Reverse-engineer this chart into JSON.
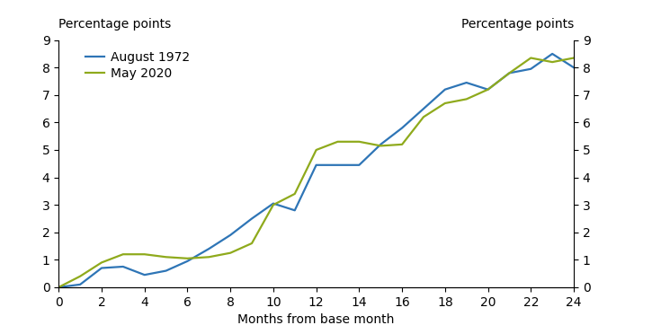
{
  "aug1972_x": [
    0,
    1,
    2,
    3,
    4,
    5,
    6,
    7,
    8,
    9,
    10,
    11,
    12,
    13,
    14,
    15,
    16,
    17,
    18,
    19,
    20,
    21,
    22,
    23,
    24
  ],
  "aug1972_y": [
    0.0,
    0.1,
    0.7,
    0.75,
    0.45,
    0.6,
    0.95,
    1.4,
    1.9,
    2.5,
    3.05,
    2.8,
    4.45,
    4.45,
    4.45,
    5.2,
    5.8,
    6.5,
    7.2,
    7.45,
    7.2,
    7.8,
    7.95,
    8.5,
    8.0
  ],
  "may2020_x": [
    0,
    1,
    2,
    3,
    4,
    5,
    6,
    7,
    8,
    9,
    10,
    11,
    12,
    13,
    14,
    15,
    16,
    17,
    18,
    19,
    20,
    21,
    22,
    23,
    24
  ],
  "may2020_y": [
    0.0,
    0.4,
    0.9,
    1.2,
    1.2,
    1.1,
    1.05,
    1.1,
    1.25,
    1.6,
    3.0,
    3.4,
    5.0,
    5.3,
    5.3,
    5.15,
    5.2,
    6.2,
    6.7,
    6.85,
    7.2,
    7.8,
    8.35,
    8.2,
    8.35
  ],
  "aug1972_color": "#2e75b6",
  "may2020_color": "#8faa1c",
  "aug1972_label": "August 1972",
  "may2020_label": "May 2020",
  "xlabel": "Months from base month",
  "ylabel_left": "Percentage points",
  "ylabel_right": "Percentage points",
  "xlim": [
    0,
    24
  ],
  "ylim": [
    0,
    9
  ],
  "xticks": [
    0,
    2,
    4,
    6,
    8,
    10,
    12,
    14,
    16,
    18,
    20,
    22,
    24
  ],
  "yticks": [
    0,
    1,
    2,
    3,
    4,
    5,
    6,
    7,
    8,
    9
  ],
  "line_width": 1.6,
  "font_size": 10
}
